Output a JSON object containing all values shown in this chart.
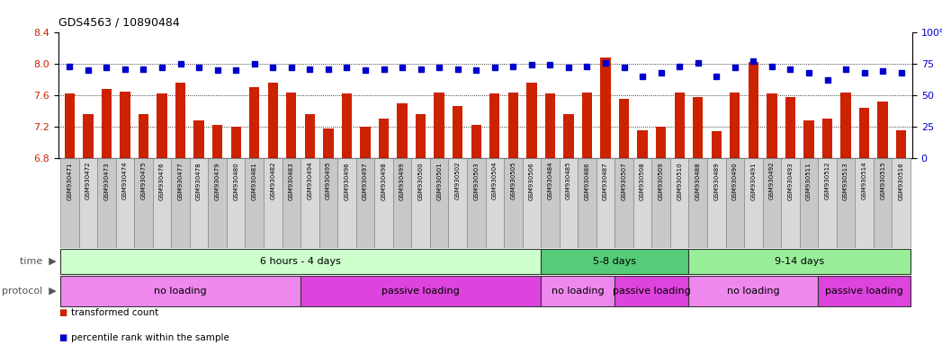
{
  "title": "GDS4563 / 10890484",
  "samples": [
    "GSM930471",
    "GSM930472",
    "GSM930473",
    "GSM930474",
    "GSM930475",
    "GSM930476",
    "GSM930477",
    "GSM930478",
    "GSM930479",
    "GSM930480",
    "GSM930481",
    "GSM930482",
    "GSM930483",
    "GSM930494",
    "GSM930495",
    "GSM930496",
    "GSM930497",
    "GSM930498",
    "GSM930499",
    "GSM930500",
    "GSM930501",
    "GSM930502",
    "GSM930503",
    "GSM930504",
    "GSM930505",
    "GSM930506",
    "GSM930484",
    "GSM930485",
    "GSM930486",
    "GSM930487",
    "GSM930507",
    "GSM930508",
    "GSM930509",
    "GSM930510",
    "GSM930488",
    "GSM930489",
    "GSM930490",
    "GSM930491",
    "GSM930492",
    "GSM930493",
    "GSM930511",
    "GSM930512",
    "GSM930513",
    "GSM930514",
    "GSM930515",
    "GSM930516"
  ],
  "bar_values": [
    7.62,
    7.36,
    7.68,
    7.65,
    7.36,
    7.62,
    7.76,
    7.28,
    7.22,
    7.2,
    7.7,
    7.76,
    7.64,
    7.36,
    7.18,
    7.62,
    7.2,
    7.3,
    7.5,
    7.36,
    7.64,
    7.46,
    7.22,
    7.62,
    7.64,
    7.76,
    7.62,
    7.36,
    7.64,
    8.08,
    7.56,
    7.16,
    7.2,
    7.64,
    7.58,
    7.14,
    7.64,
    8.02,
    7.62,
    7.58,
    7.28,
    7.3,
    7.64,
    7.44,
    7.52,
    7.16
  ],
  "percentile_values": [
    73,
    70,
    72,
    71,
    71,
    72,
    75,
    72,
    70,
    70,
    75,
    72,
    72,
    71,
    71,
    72,
    70,
    71,
    72,
    71,
    72,
    71,
    70,
    72,
    73,
    74,
    74,
    72,
    73,
    76,
    72,
    65,
    68,
    73,
    76,
    65,
    72,
    77,
    73,
    71,
    68,
    62,
    71,
    68,
    69,
    68
  ],
  "ylim_left": [
    6.8,
    8.4
  ],
  "ylim_right": [
    0,
    100
  ],
  "yticks_left": [
    6.8,
    7.2,
    7.6,
    8.0,
    8.4
  ],
  "yticks_right": [
    0,
    25,
    50,
    75,
    100
  ],
  "bar_color": "#CC2200",
  "dot_color": "#0000CC",
  "bg_color": "#FFFFFF",
  "time_groups": [
    {
      "label": "6 hours - 4 days",
      "start": 0,
      "end": 25,
      "color": "#CCFFCC"
    },
    {
      "label": "5-8 days",
      "start": 26,
      "end": 33,
      "color": "#55CC77"
    },
    {
      "label": "9-14 days",
      "start": 34,
      "end": 45,
      "color": "#99EE99"
    }
  ],
  "protocol_groups": [
    {
      "label": "no loading",
      "start": 0,
      "end": 12,
      "color": "#EE88EE"
    },
    {
      "label": "passive loading",
      "start": 13,
      "end": 25,
      "color": "#DD44DD"
    },
    {
      "label": "no loading",
      "start": 26,
      "end": 29,
      "color": "#EE88EE"
    },
    {
      "label": "passive loading",
      "start": 30,
      "end": 33,
      "color": "#DD44DD"
    },
    {
      "label": "no loading",
      "start": 34,
      "end": 40,
      "color": "#EE88EE"
    },
    {
      "label": "passive loading",
      "start": 41,
      "end": 45,
      "color": "#DD44DD"
    }
  ]
}
